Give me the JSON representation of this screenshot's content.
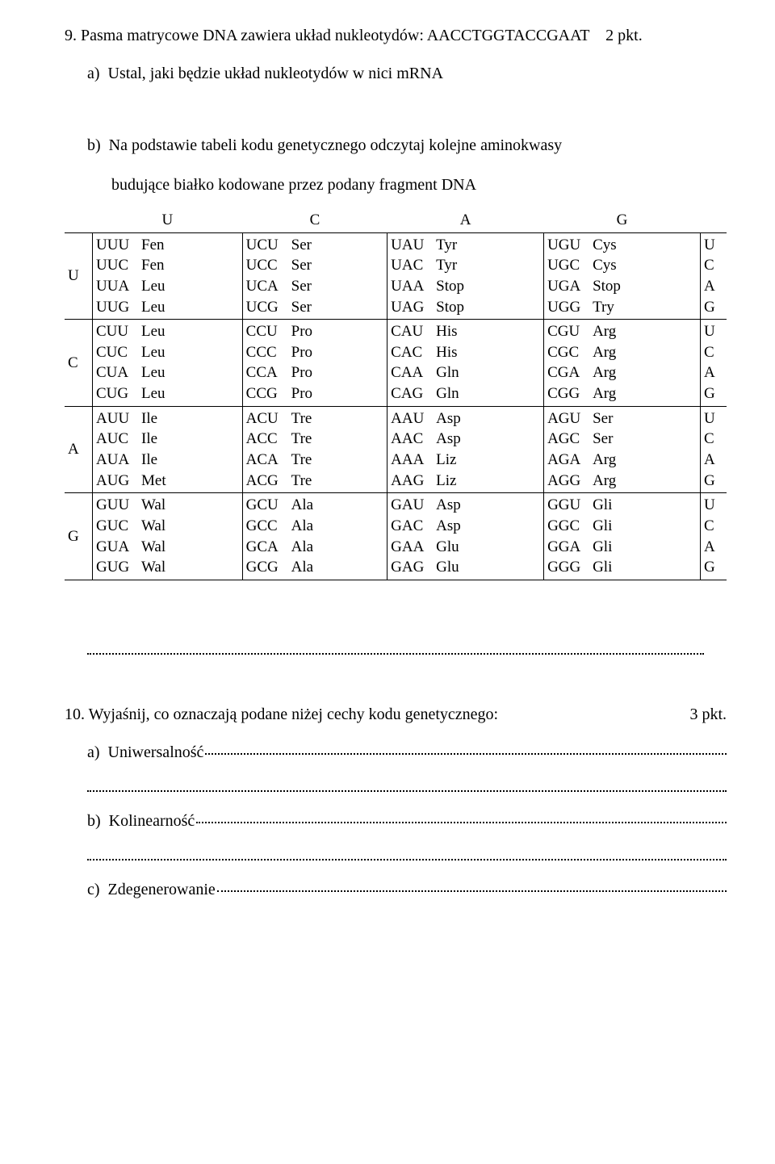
{
  "q9": {
    "number": "9.",
    "text": "Pasma matrycowe DNA zawiera układ nukleotydów: AACCTGGTACCGAAT",
    "points": "2 pkt.",
    "a_label": "a)",
    "a_text": "Ustal, jaki będzie układ nukleotydów w nici mRNA",
    "b_label": "b)",
    "b_text_line1": "Na podstawie tabeli kodu genetycznego odczytaj kolejne aminokwasy",
    "b_text_line2": "budujące białko kodowane przez podany fragment DNA"
  },
  "codon_table": {
    "col_headers": [
      "U",
      "C",
      "A",
      "G"
    ],
    "row_headers": [
      "U",
      "C",
      "A",
      "G"
    ],
    "third_pos": [
      "U",
      "C",
      "A",
      "G"
    ],
    "blocks": [
      [
        {
          "codons": [
            "UUU",
            "UUC",
            "UUA",
            "UUG"
          ],
          "aas": [
            "Fen",
            "Fen",
            "Leu",
            "Leu"
          ]
        },
        {
          "codons": [
            "UCU",
            "UCC",
            "UCA",
            "UCG"
          ],
          "aas": [
            "Ser",
            "Ser",
            "Ser",
            "Ser"
          ]
        },
        {
          "codons": [
            "UAU",
            "UAC",
            "UAA",
            "UAG"
          ],
          "aas": [
            "Tyr",
            "Tyr",
            "Stop",
            "Stop"
          ]
        },
        {
          "codons": [
            "UGU",
            "UGC",
            "UGA",
            "UGG"
          ],
          "aas": [
            "Cys",
            "Cys",
            "Stop",
            "Try"
          ]
        }
      ],
      [
        {
          "codons": [
            "CUU",
            "CUC",
            "CUA",
            "CUG"
          ],
          "aas": [
            "Leu",
            "Leu",
            "Leu",
            "Leu"
          ]
        },
        {
          "codons": [
            "CCU",
            "CCC",
            "CCA",
            "CCG"
          ],
          "aas": [
            "Pro",
            "Pro",
            "Pro",
            "Pro"
          ]
        },
        {
          "codons": [
            "CAU",
            "CAC",
            "CAA",
            "CAG"
          ],
          "aas": [
            "His",
            "His",
            "Gln",
            "Gln"
          ]
        },
        {
          "codons": [
            "CGU",
            "CGC",
            "CGA",
            "CGG"
          ],
          "aas": [
            "Arg",
            "Arg",
            "Arg",
            "Arg"
          ]
        }
      ],
      [
        {
          "codons": [
            "AUU",
            "AUC",
            "AUA",
            "AUG"
          ],
          "aas": [
            "Ile",
            "Ile",
            "Ile",
            "Met"
          ]
        },
        {
          "codons": [
            "ACU",
            "ACC",
            "ACA",
            "ACG"
          ],
          "aas": [
            "Tre",
            "Tre",
            "Tre",
            "Tre"
          ]
        },
        {
          "codons": [
            "AAU",
            "AAC",
            "AAA",
            "AAG"
          ],
          "aas": [
            "Asp",
            "Asp",
            "Liz",
            "Liz"
          ]
        },
        {
          "codons": [
            "AGU",
            "AGC",
            "AGA",
            "AGG"
          ],
          "aas": [
            "Ser",
            "Ser",
            "Arg",
            "Arg"
          ]
        }
      ],
      [
        {
          "codons": [
            "GUU",
            "GUC",
            "GUA",
            "GUG"
          ],
          "aas": [
            "Wal",
            "Wal",
            "Wal",
            "Wal"
          ]
        },
        {
          "codons": [
            "GCU",
            "GCC",
            "GCA",
            "GCG"
          ],
          "aas": [
            "Ala",
            "Ala",
            "Ala",
            "Ala"
          ]
        },
        {
          "codons": [
            "GAU",
            "GAC",
            "GAA",
            "GAG"
          ],
          "aas": [
            "Asp",
            "Asp",
            "Glu",
            "Glu"
          ]
        },
        {
          "codons": [
            "GGU",
            "GGC",
            "GGA",
            "GGG"
          ],
          "aas": [
            "Gli",
            "Gli",
            "Gli",
            "Gli"
          ]
        }
      ]
    ]
  },
  "q10": {
    "number": "10.",
    "text": "Wyjaśnij, co oznaczają podane niżej cechy kodu genetycznego:",
    "points": "3 pkt.",
    "a_label": "a)",
    "a_text": "Uniwersalność",
    "b_label": "b)",
    "b_text": "Kolinearność",
    "c_label": "c)",
    "c_text": "Zdegenerowanie"
  }
}
